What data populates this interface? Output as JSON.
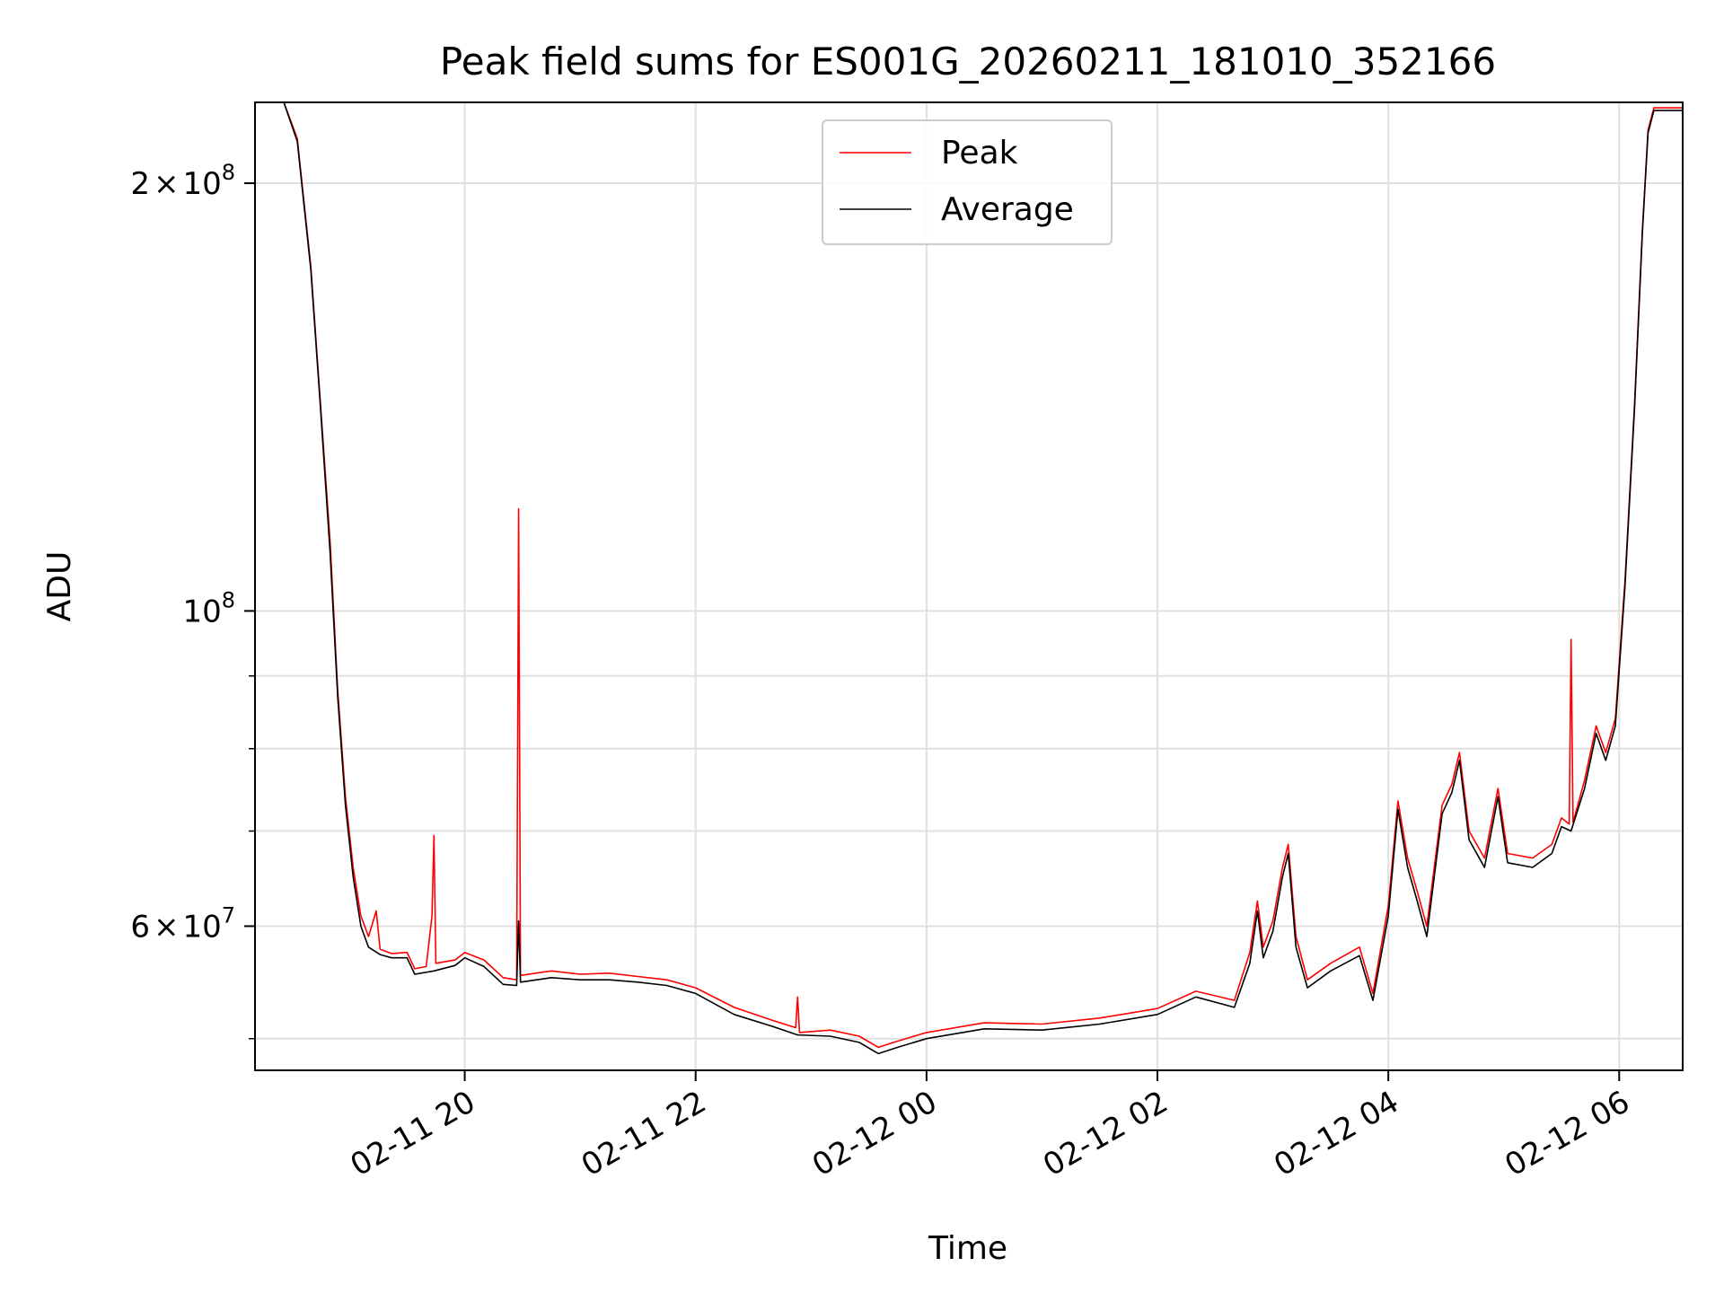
{
  "chart_data": {
    "type": "line",
    "title": "Peak field sums for ES001G_20260211_181010_352166",
    "xlabel": "Time",
    "ylabel": "ADU",
    "y_scale": "log",
    "ylim": [
      47500000,
      228000000
    ],
    "xlim": [
      "2026-02-11 18:11",
      "2026-02-12 06:33"
    ],
    "grid": true,
    "legend_position": "upper center",
    "x_ticks": [
      {
        "label": "02-11 20",
        "value": "2026-02-11 20:00"
      },
      {
        "label": "02-11 22",
        "value": "2026-02-11 22:00"
      },
      {
        "label": "02-12 00",
        "value": "2026-02-12 00:00"
      },
      {
        "label": "02-12 02",
        "value": "2026-02-12 02:00"
      },
      {
        "label": "02-12 04",
        "value": "2026-02-12 04:00"
      },
      {
        "label": "02-12 06",
        "value": "2026-02-12 06:00"
      }
    ],
    "y_major_ticks": [
      {
        "base": "6",
        "exp": "7",
        "value": 60000000
      },
      {
        "base": "",
        "exp": "8",
        "value": 100000000
      },
      {
        "base": "2",
        "exp": "8",
        "value": 200000000
      }
    ],
    "y_minor_ticks": [
      50000000,
      70000000,
      80000000,
      90000000
    ],
    "series": [
      {
        "name": "Peak",
        "color": "#ff0000",
        "points": [
          [
            "2026-02-11 18:11",
            228000000
          ],
          [
            "2026-02-11 18:26",
            228000000
          ],
          [
            "2026-02-11 18:33",
            215000000
          ],
          [
            "2026-02-11 18:40",
            175000000
          ],
          [
            "2026-02-11 18:45",
            140000000
          ],
          [
            "2026-02-11 18:50",
            112000000
          ],
          [
            "2026-02-11 18:54",
            88000000
          ],
          [
            "2026-02-11 18:58",
            74000000
          ],
          [
            "2026-02-11 19:02",
            66000000
          ],
          [
            "2026-02-11 19:06",
            61000000
          ],
          [
            "2026-02-11 19:10",
            59000000
          ],
          [
            "2026-02-11 19:14",
            61500000
          ],
          [
            "2026-02-11 19:16",
            57800000
          ],
          [
            "2026-02-11 19:22",
            57400000
          ],
          [
            "2026-02-11 19:30",
            57500000
          ],
          [
            "2026-02-11 19:34",
            56000000
          ],
          [
            "2026-02-11 19:40",
            56200000
          ],
          [
            "2026-02-11 19:43",
            61000000
          ],
          [
            "2026-02-11 19:44",
            69500000
          ],
          [
            "2026-02-11 19:45",
            56500000
          ],
          [
            "2026-02-11 19:55",
            56800000
          ],
          [
            "2026-02-11 20:00",
            57500000
          ],
          [
            "2026-02-11 20:10",
            56800000
          ],
          [
            "2026-02-11 20:20",
            55200000
          ],
          [
            "2026-02-11 20:27",
            55000000
          ],
          [
            "2026-02-11 20:28",
            118000000
          ],
          [
            "2026-02-11 20:29",
            55400000
          ],
          [
            "2026-02-11 20:45",
            55800000
          ],
          [
            "2026-02-11 21:00",
            55500000
          ],
          [
            "2026-02-11 21:15",
            55600000
          ],
          [
            "2026-02-11 21:30",
            55300000
          ],
          [
            "2026-02-11 21:45",
            55000000
          ],
          [
            "2026-02-11 22:00",
            54300000
          ],
          [
            "2026-02-11 22:20",
            52600000
          ],
          [
            "2026-02-11 22:40",
            51500000
          ],
          [
            "2026-02-11 22:52",
            50900000
          ],
          [
            "2026-02-11 22:53",
            53500000
          ],
          [
            "2026-02-11 22:54",
            50500000
          ],
          [
            "2026-02-11 23:10",
            50700000
          ],
          [
            "2026-02-11 23:25",
            50200000
          ],
          [
            "2026-02-11 23:35",
            49300000
          ],
          [
            "2026-02-11 23:45",
            49800000
          ],
          [
            "2026-02-12 00:00",
            50500000
          ],
          [
            "2026-02-12 00:30",
            51300000
          ],
          [
            "2026-02-12 01:00",
            51200000
          ],
          [
            "2026-02-12 01:30",
            51700000
          ],
          [
            "2026-02-12 02:00",
            52500000
          ],
          [
            "2026-02-12 02:20",
            54000000
          ],
          [
            "2026-02-12 02:40",
            53200000
          ],
          [
            "2026-02-12 02:48",
            57500000
          ],
          [
            "2026-02-12 02:52",
            62500000
          ],
          [
            "2026-02-12 02:55",
            58000000
          ],
          [
            "2026-02-12 03:00",
            60500000
          ],
          [
            "2026-02-12 03:05",
            66000000
          ],
          [
            "2026-02-12 03:08",
            68500000
          ],
          [
            "2026-02-12 03:12",
            59000000
          ],
          [
            "2026-02-12 03:18",
            55000000
          ],
          [
            "2026-02-12 03:30",
            56500000
          ],
          [
            "2026-02-12 03:45",
            58000000
          ],
          [
            "2026-02-12 03:52",
            53800000
          ],
          [
            "2026-02-12 04:00",
            62000000
          ],
          [
            "2026-02-12 04:05",
            73500000
          ],
          [
            "2026-02-12 04:10",
            67000000
          ],
          [
            "2026-02-12 04:15",
            63500000
          ],
          [
            "2026-02-12 04:20",
            60000000
          ],
          [
            "2026-02-12 04:28",
            73000000
          ],
          [
            "2026-02-12 04:33",
            75500000
          ],
          [
            "2026-02-12 04:37",
            79500000
          ],
          [
            "2026-02-12 04:42",
            70000000
          ],
          [
            "2026-02-12 04:50",
            67000000
          ],
          [
            "2026-02-12 04:57",
            75000000
          ],
          [
            "2026-02-12 05:02",
            67500000
          ],
          [
            "2026-02-12 05:15",
            67000000
          ],
          [
            "2026-02-12 05:25",
            68500000
          ],
          [
            "2026-02-12 05:30",
            71500000
          ],
          [
            "2026-02-12 05:34",
            70800000
          ],
          [
            "2026-02-12 05:35",
            95500000
          ],
          [
            "2026-02-12 05:36",
            71000000
          ],
          [
            "2026-02-12 05:42",
            76000000
          ],
          [
            "2026-02-12 05:48",
            83000000
          ],
          [
            "2026-02-12 05:53",
            79500000
          ],
          [
            "2026-02-12 05:58",
            84000000
          ],
          [
            "2026-02-12 06:03",
            105000000
          ],
          [
            "2026-02-12 06:08",
            140000000
          ],
          [
            "2026-02-12 06:12",
            185000000
          ],
          [
            "2026-02-12 06:15",
            218000000
          ],
          [
            "2026-02-12 06:18",
            226000000
          ],
          [
            "2026-02-12 06:33",
            226000000
          ]
        ]
      },
      {
        "name": "Average",
        "color": "#000000",
        "points": [
          [
            "2026-02-11 18:11",
            228000000
          ],
          [
            "2026-02-11 18:26",
            228000000
          ],
          [
            "2026-02-11 18:33",
            214000000
          ],
          [
            "2026-02-11 18:40",
            174000000
          ],
          [
            "2026-02-11 18:45",
            139000000
          ],
          [
            "2026-02-11 18:50",
            110000000
          ],
          [
            "2026-02-11 18:54",
            87000000
          ],
          [
            "2026-02-11 18:58",
            73000000
          ],
          [
            "2026-02-11 19:02",
            65000000
          ],
          [
            "2026-02-11 19:06",
            60000000
          ],
          [
            "2026-02-11 19:10",
            58000000
          ],
          [
            "2026-02-11 19:16",
            57300000
          ],
          [
            "2026-02-11 19:22",
            57000000
          ],
          [
            "2026-02-11 19:30",
            57000000
          ],
          [
            "2026-02-11 19:34",
            55500000
          ],
          [
            "2026-02-11 19:44",
            55800000
          ],
          [
            "2026-02-11 19:55",
            56300000
          ],
          [
            "2026-02-11 20:00",
            57000000
          ],
          [
            "2026-02-11 20:10",
            56200000
          ],
          [
            "2026-02-11 20:20",
            54600000
          ],
          [
            "2026-02-11 20:27",
            54500000
          ],
          [
            "2026-02-11 20:28",
            60500000
          ],
          [
            "2026-02-11 20:29",
            54800000
          ],
          [
            "2026-02-11 20:45",
            55200000
          ],
          [
            "2026-02-11 21:00",
            55000000
          ],
          [
            "2026-02-11 21:15",
            55000000
          ],
          [
            "2026-02-11 21:30",
            54800000
          ],
          [
            "2026-02-11 21:45",
            54500000
          ],
          [
            "2026-02-11 22:00",
            53800000
          ],
          [
            "2026-02-11 22:20",
            52000000
          ],
          [
            "2026-02-11 22:40",
            51000000
          ],
          [
            "2026-02-11 22:53",
            50300000
          ],
          [
            "2026-02-11 23:10",
            50200000
          ],
          [
            "2026-02-11 23:25",
            49700000
          ],
          [
            "2026-02-11 23:35",
            48800000
          ],
          [
            "2026-02-11 23:45",
            49300000
          ],
          [
            "2026-02-12 00:00",
            50000000
          ],
          [
            "2026-02-12 00:30",
            50800000
          ],
          [
            "2026-02-12 01:00",
            50700000
          ],
          [
            "2026-02-12 01:30",
            51200000
          ],
          [
            "2026-02-12 02:00",
            52000000
          ],
          [
            "2026-02-12 02:20",
            53500000
          ],
          [
            "2026-02-12 02:40",
            52600000
          ],
          [
            "2026-02-12 02:48",
            56500000
          ],
          [
            "2026-02-12 02:52",
            61500000
          ],
          [
            "2026-02-12 02:55",
            57000000
          ],
          [
            "2026-02-12 03:00",
            59500000
          ],
          [
            "2026-02-12 03:05",
            65000000
          ],
          [
            "2026-02-12 03:08",
            67500000
          ],
          [
            "2026-02-12 03:12",
            58000000
          ],
          [
            "2026-02-12 03:18",
            54300000
          ],
          [
            "2026-02-12 03:30",
            55800000
          ],
          [
            "2026-02-12 03:45",
            57200000
          ],
          [
            "2026-02-12 03:52",
            53200000
          ],
          [
            "2026-02-12 04:00",
            61000000
          ],
          [
            "2026-02-12 04:05",
            72500000
          ],
          [
            "2026-02-12 04:10",
            66000000
          ],
          [
            "2026-02-12 04:15",
            62500000
          ],
          [
            "2026-02-12 04:20",
            59000000
          ],
          [
            "2026-02-12 04:28",
            72000000
          ],
          [
            "2026-02-12 04:33",
            74500000
          ],
          [
            "2026-02-12 04:37",
            78500000
          ],
          [
            "2026-02-12 04:42",
            69000000
          ],
          [
            "2026-02-12 04:50",
            66000000
          ],
          [
            "2026-02-12 04:57",
            74000000
          ],
          [
            "2026-02-12 05:02",
            66500000
          ],
          [
            "2026-02-12 05:15",
            66000000
          ],
          [
            "2026-02-12 05:25",
            67500000
          ],
          [
            "2026-02-12 05:30",
            70500000
          ],
          [
            "2026-02-12 05:35",
            70000000
          ],
          [
            "2026-02-12 05:42",
            75000000
          ],
          [
            "2026-02-12 05:48",
            82000000
          ],
          [
            "2026-02-12 05:53",
            78500000
          ],
          [
            "2026-02-12 05:58",
            83000000
          ],
          [
            "2026-02-12 06:03",
            104000000
          ],
          [
            "2026-02-12 06:08",
            139000000
          ],
          [
            "2026-02-12 06:12",
            184000000
          ],
          [
            "2026-02-12 06:15",
            217000000
          ],
          [
            "2026-02-12 06:18",
            225000000
          ],
          [
            "2026-02-12 06:33",
            225000000
          ]
        ]
      }
    ]
  }
}
